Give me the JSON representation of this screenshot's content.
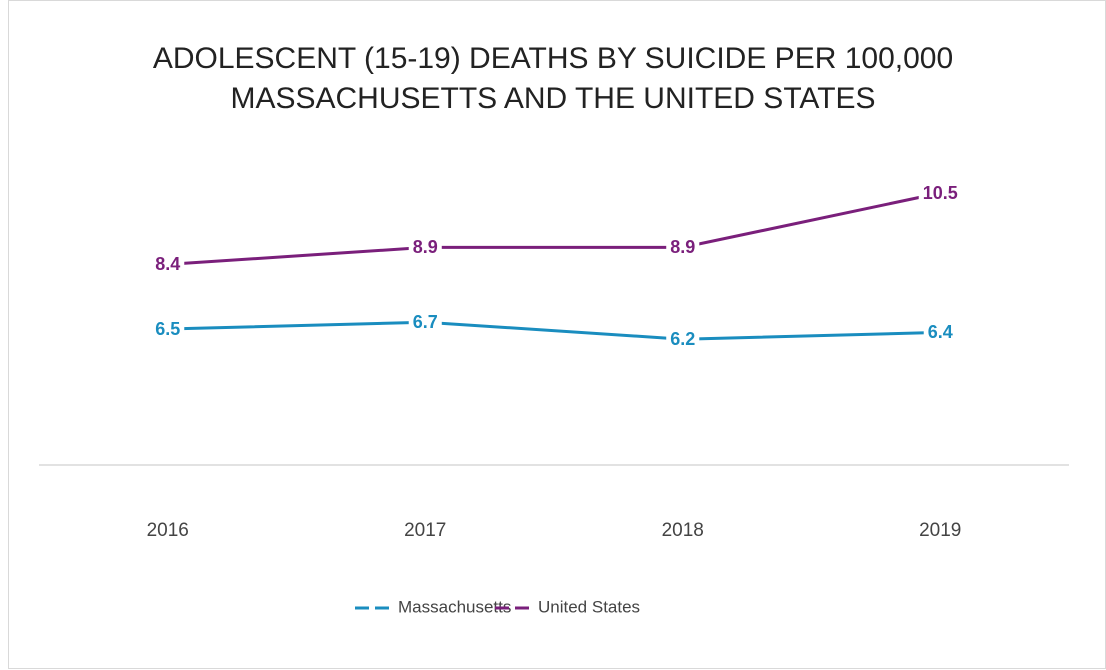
{
  "chart_data": {
    "type": "line",
    "title": "ADOLESCENT (15-19) DEATHS BY SUICIDE PER 100,000",
    "subtitle": "MASSACHUSETTS AND THE UNITED STATES",
    "categories": [
      "2016",
      "2017",
      "2018",
      "2019"
    ],
    "series": [
      {
        "name": "Massachusetts",
        "color": "#1a8dbf",
        "values": [
          6.5,
          6.7,
          6.2,
          6.4
        ]
      },
      {
        "name": "United States",
        "color": "#7a1f7b",
        "values": [
          8.4,
          8.9,
          8.9,
          10.5
        ]
      }
    ],
    "ylim": [
      2.5,
      11.5
    ],
    "grid": false,
    "legend": "bottom"
  }
}
